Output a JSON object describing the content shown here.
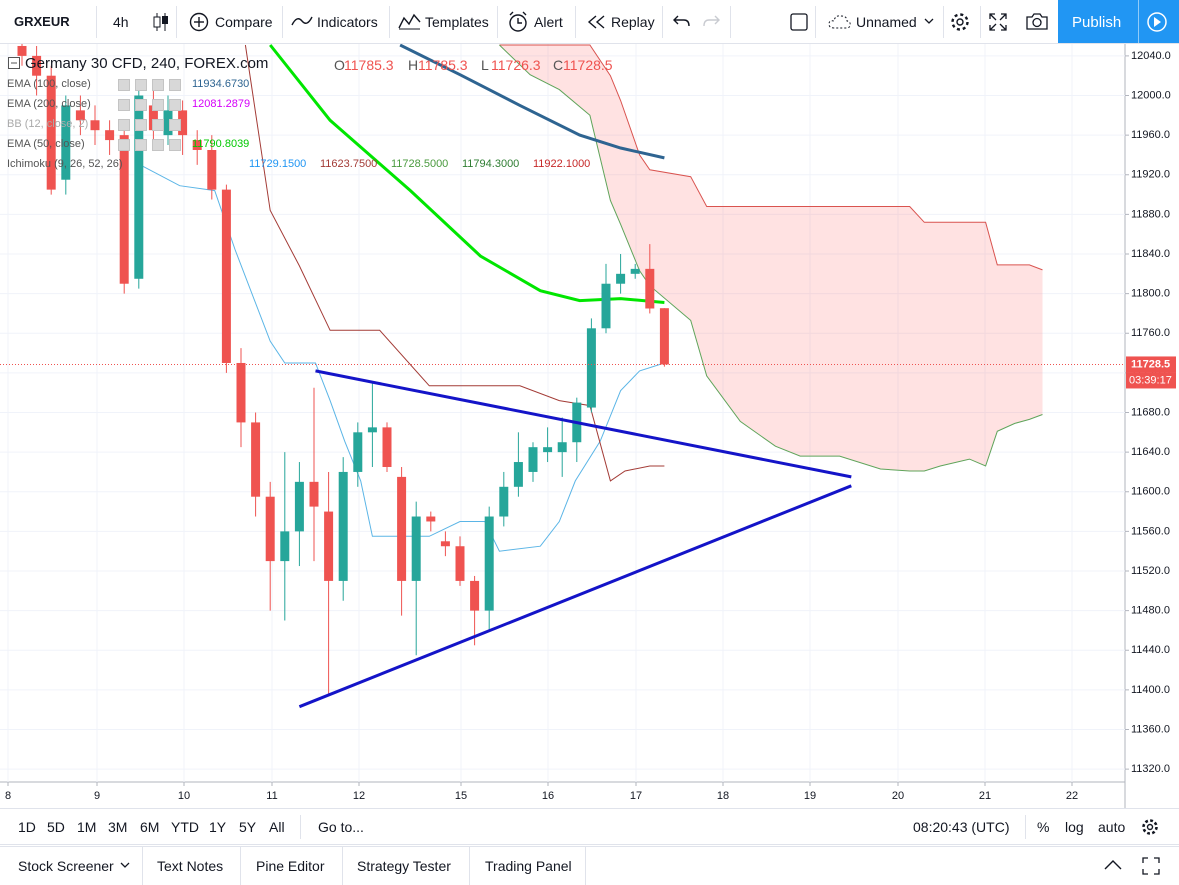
{
  "toolbar": {
    "symbol": "GRXEUR",
    "interval": "4h",
    "items": [
      "Compare",
      "Indicators",
      "Templates",
      "Alert",
      "Replay"
    ],
    "layout_name": "Unnamed",
    "publish": "Publish"
  },
  "legend": {
    "title": "Germany 30 CFD, 240, FOREX.com",
    "ohlc_keys": [
      "O",
      "H",
      "L",
      "C"
    ],
    "indicators": [
      {
        "name": "EMA (100, close)",
        "values": [
          "11934.6730"
        ],
        "colors": [
          "#2e6491"
        ]
      },
      {
        "name": "EMA (200, close)",
        "values": [
          "12081.2879"
        ],
        "colors": [
          "#d500f9"
        ]
      },
      {
        "name": "BB (12, close, 2)",
        "values": [],
        "colors": []
      },
      {
        "name": "EMA (50, close)",
        "values": [
          "11790.8039"
        ],
        "colors": [
          "#00c800"
        ]
      },
      {
        "name": "Ichimoku (9, 26, 52, 26)",
        "values": [
          "11729.1500",
          "11623.7500",
          "11728.5000",
          "11794.3000",
          "11922.1000"
        ],
        "colors": [
          "#2196f3",
          "#a33b36",
          "#4a9a3e",
          "#2e7d32",
          "#c62828"
        ]
      }
    ]
  },
  "chart_data": {
    "type": "candlestick",
    "ylim": [
      11307,
      12052
    ],
    "yticks": [
      {
        "value": 12040,
        "label": "12040.0"
      },
      {
        "value": 12000,
        "label": "12000.0"
      },
      {
        "value": 11960,
        "label": "11960.0"
      },
      {
        "value": 11920,
        "label": "11920.0"
      },
      {
        "value": 11880,
        "label": "11880.0"
      },
      {
        "value": 11840,
        "label": "11840.0"
      },
      {
        "value": 11800,
        "label": "11800.0"
      },
      {
        "value": 11760,
        "label": "11760.0"
      },
      {
        "value": 11720,
        "label": "11720.0"
      },
      {
        "value": 11680,
        "label": "11680.0"
      },
      {
        "value": 11640,
        "label": "11640.0"
      },
      {
        "value": 11600,
        "label": "11600.0"
      },
      {
        "value": 11560,
        "label": "11560.0"
      },
      {
        "value": 11520,
        "label": "11520.0"
      },
      {
        "value": 11480,
        "label": "11480.0"
      },
      {
        "value": 11440,
        "label": "11440.0"
      },
      {
        "value": 11400,
        "label": "11400.0"
      },
      {
        "value": 11360,
        "label": "11360.0"
      },
      {
        "value": 11320,
        "label": "11320.0"
      }
    ],
    "x_labels": [
      "8",
      "9",
      "10",
      "11",
      "12",
      "15",
      "16",
      "17",
      "18",
      "19",
      "20",
      "21",
      "22"
    ],
    "up_color": "#26a69a",
    "down_color": "#ef5350",
    "candles": {
      "open": [
        12050,
        12040,
        12020,
        11915,
        11985,
        11975,
        11965,
        11960,
        11815,
        11990,
        11960,
        11985,
        11955,
        11945,
        11905,
        11730,
        11670,
        11595,
        11530,
        11560,
        11610,
        11580,
        11510,
        11620,
        11660,
        11665,
        11615,
        11510,
        11575,
        11550,
        11545,
        11510,
        11480,
        11575,
        11605,
        11620,
        11640,
        11640,
        11650,
        11685,
        11765,
        11810,
        11820,
        11825,
        11785.3
      ],
      "high": [
        12060,
        12050,
        12030,
        12000,
        12000,
        11990,
        11975,
        11975,
        12010,
        12010,
        12000,
        11995,
        11965,
        11960,
        11910,
        11745,
        11680,
        11610,
        11640,
        11630,
        11705,
        11620,
        11635,
        11670,
        11710,
        11670,
        11625,
        11590,
        11580,
        11560,
        11555,
        11515,
        11585,
        11620,
        11660,
        11650,
        11665,
        11675,
        11695,
        11775,
        11830,
        11840,
        11830,
        11850,
        11785.3
      ],
      "low": [
        12030,
        12000,
        11900,
        11900,
        11960,
        11950,
        11940,
        11800,
        11805,
        11955,
        11950,
        11940,
        11930,
        11895,
        11720,
        11645,
        11575,
        11480,
        11470,
        11525,
        11530,
        11395,
        11490,
        11605,
        11625,
        11620,
        11475,
        11435,
        11560,
        11535,
        11505,
        11445,
        11460,
        11565,
        11595,
        11610,
        11630,
        11615,
        11630,
        11680,
        11760,
        11800,
        11815,
        11780,
        11726.3
      ],
      "close": [
        12040,
        12020,
        11905,
        11990,
        11975,
        11965,
        11955,
        11810,
        12000,
        11965,
        11985,
        11960,
        11945,
        11905,
        11730,
        11670,
        11595,
        11530,
        11560,
        11610,
        11585,
        11510,
        11620,
        11660,
        11665,
        11625,
        11510,
        11575,
        11570,
        11545,
        11510,
        11480,
        11575,
        11605,
        11630,
        11645,
        11645,
        11650,
        11690,
        11765,
        11810,
        11820,
        11825,
        11785,
        11728.5
      ]
    },
    "series": [
      {
        "color": "#00e600",
        "width": 3,
        "x": [
          17,
          21.1,
          26.6,
          31.4,
          35.5,
          38.2,
          41,
          44
        ],
        "values": [
          12051,
          11975,
          11904,
          11838,
          11803,
          11793,
          11795,
          11791
        ]
      },
      {
        "color": "#2e6491",
        "width": 3,
        "x": [
          25.9,
          30,
          34.1,
          38.2,
          41,
          44
        ],
        "values": [
          12051,
          12021,
          11990,
          11960,
          11947,
          11937
        ]
      },
      {
        "color": "#5bb5e6",
        "width": 1,
        "x": [
          8.1,
          10.8,
          13.2,
          14.6,
          17,
          18,
          20.1,
          21.1,
          22.1,
          23.2,
          24,
          27.9,
          30,
          31.7,
          32.7,
          35.5,
          36.8,
          37.9,
          39.6,
          41,
          42.3,
          44
        ],
        "values": [
          11930,
          11909,
          11904,
          11844,
          11752,
          11730,
          11730,
          11692,
          11651,
          11611,
          11555,
          11555,
          11570,
          11570,
          11540,
          11545,
          11570,
          11611,
          11651,
          11702,
          11722,
          11730
        ]
      },
      {
        "color": "#a33b36",
        "width": 1,
        "x": [
          15.3,
          17,
          19,
          21.1,
          24.5,
          27.9,
          34.1,
          36.8,
          38.9,
          40.3,
          41.3,
          43,
          44
        ],
        "values": [
          12051,
          11884,
          11828,
          11763,
          11763,
          11707,
          11707,
          11692,
          11687,
          11611,
          11621,
          11626,
          11626
        ]
      }
    ],
    "cloud": {
      "fill": "rgba(255,82,82,0.17)",
      "upper_color": "#d9534f",
      "lower_color": "#5fa45a",
      "x": [
        32.7,
        34.8,
        36.8,
        38.9,
        40.3,
        41,
        42.3,
        43,
        45.8,
        46.9,
        49.2,
        51.6,
        53.3,
        56,
        58.8,
        60.8,
        61.8,
        62.9,
        64.9,
        66,
        66.8,
        68,
        69,
        69.9
      ],
      "span_b": [
        12051,
        12051,
        12051,
        12051,
        12020,
        11995,
        11940,
        11925,
        11918,
        11888,
        11888,
        11888,
        11888,
        11888,
        11888,
        11888,
        11872,
        11872,
        11872,
        11872,
        11829,
        11829,
        11829,
        11824
      ],
      "span_a": [
        12051,
        12021,
        12006,
        11980,
        11894,
        11870,
        11823,
        11808,
        11773,
        11717,
        11671,
        11646,
        11636,
        11636,
        11623,
        11621,
        11621,
        11626,
        11633,
        11626,
        11661,
        11669,
        11673,
        11678
      ]
    },
    "drawings": [
      {
        "color": "#1414c8",
        "x": [
          20.1,
          56.8
        ],
        "values": [
          11722,
          11615
        ]
      },
      {
        "color": "#1414c8",
        "x": [
          19,
          56.8
        ],
        "values": [
          11383,
          11606
        ]
      }
    ],
    "countdown": "03:39:17"
  },
  "bottom_bar": {
    "ranges": [
      "1D",
      "5D",
      "1M",
      "3M",
      "6M",
      "YTD",
      "1Y",
      "5Y",
      "All"
    ],
    "goto": "Go to...",
    "clock": "08:20:43 (UTC)",
    "options": [
      "%",
      "log",
      "auto"
    ]
  },
  "tabs": [
    "Stock Screener",
    "Text Notes",
    "Pine Editor",
    "Strategy Tester",
    "Trading Panel"
  ]
}
